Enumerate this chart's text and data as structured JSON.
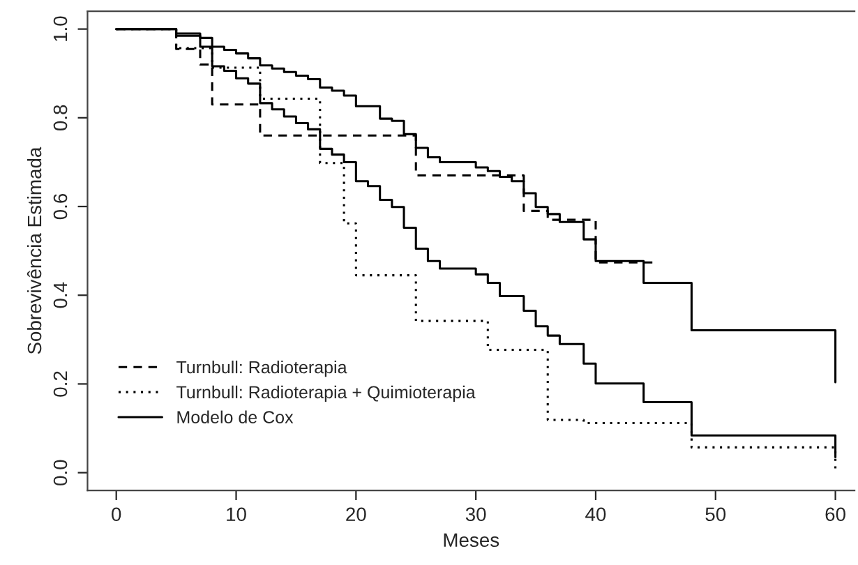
{
  "chart_data": {
    "type": "step",
    "xlabel": "Meses",
    "ylabel": "Sobrevivência Estimada",
    "xlim": [
      -2.4,
      61.6
    ],
    "ylim": [
      -0.04,
      1.04
    ],
    "xticks": [
      0,
      10,
      20,
      30,
      40,
      50,
      60
    ],
    "yticks": [
      {
        "value": 0,
        "label": "0.0"
      },
      0.2,
      0.4,
      0.6,
      0.8,
      {
        "value": 1,
        "label": "1.0"
      }
    ],
    "grid": false,
    "legend": "bottom left",
    "series": [
      {
        "name": "Turnbull: Radioterapia",
        "color": "#000000",
        "line_style": "dashed",
        "x": [
          0,
          5,
          7,
          8,
          12,
          25,
          34,
          36,
          40,
          45
        ],
        "values": [
          1.0,
          0.955,
          0.92,
          0.83,
          0.76,
          0.67,
          0.59,
          0.57,
          0.474,
          0.474
        ]
      },
      {
        "name": "Turnbull: Radioterapia + Quimioterapia",
        "color": "#000000",
        "line_style": "dotted",
        "x": [
          0,
          5,
          8,
          12,
          17,
          19,
          20,
          25,
          31,
          36,
          39,
          48,
          60,
          60
        ],
        "values": [
          1.0,
          0.957,
          0.913,
          0.843,
          0.698,
          0.562,
          0.445,
          0.342,
          0.277,
          0.119,
          0.112,
          0.057,
          0.057,
          0.003
        ]
      },
      {
        "name": "Modelo de Cox",
        "color": "#000000",
        "line_style": "solid",
        "x": [
          0,
          5,
          7,
          8,
          9,
          10,
          11,
          12,
          13,
          14,
          15,
          16,
          17,
          18,
          19,
          20,
          22,
          23,
          24,
          25,
          26,
          27,
          30,
          31,
          32,
          33,
          34,
          35,
          36,
          37,
          39,
          40,
          44,
          48,
          60,
          60
        ],
        "values": [
          1.0,
          0.99,
          0.98,
          0.96,
          0.953,
          0.945,
          0.934,
          0.918,
          0.911,
          0.903,
          0.895,
          0.887,
          0.868,
          0.861,
          0.85,
          0.826,
          0.798,
          0.793,
          0.763,
          0.732,
          0.711,
          0.7,
          0.688,
          0.68,
          0.667,
          0.657,
          0.63,
          0.599,
          0.583,
          0.565,
          0.526,
          0.477,
          0.428,
          0.321,
          0.321,
          0.204
        ]
      },
      {
        "color": "#000000",
        "line_style": "solid",
        "x": [
          0,
          5,
          7,
          8,
          9,
          10,
          11,
          12,
          13,
          14,
          15,
          16,
          17,
          18,
          19,
          20,
          21,
          22,
          23,
          24,
          25,
          26,
          27,
          30,
          31,
          32,
          34,
          35,
          36,
          37,
          39,
          40,
          44,
          48,
          60,
          60
        ],
        "values": [
          1.0,
          0.985,
          0.96,
          0.916,
          0.906,
          0.889,
          0.877,
          0.833,
          0.819,
          0.803,
          0.788,
          0.774,
          0.73,
          0.717,
          0.7,
          0.657,
          0.646,
          0.615,
          0.599,
          0.552,
          0.505,
          0.477,
          0.46,
          0.447,
          0.428,
          0.398,
          0.365,
          0.33,
          0.309,
          0.29,
          0.246,
          0.201,
          0.159,
          0.084,
          0.084,
          0.035
        ]
      }
    ]
  }
}
